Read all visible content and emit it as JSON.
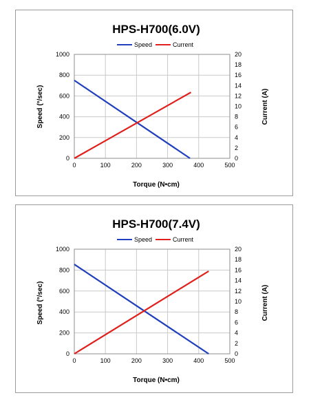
{
  "chart_data": [
    {
      "type": "line",
      "title": "HPS-H700(6.0V)",
      "xlabel": "Torque (N•cm)",
      "ylabel": "Speed (°/sec)",
      "y2label": "Current (A)",
      "xlim": [
        0,
        500
      ],
      "ylim": [
        0,
        1000
      ],
      "y2lim": [
        0,
        20
      ],
      "x_ticks": [
        "0",
        "100",
        "200",
        "300",
        "400",
        "500"
      ],
      "y_ticks": [
        "0",
        "200",
        "400",
        "600",
        "800",
        "1000"
      ],
      "y2_ticks": [
        "0",
        "2",
        "4",
        "6",
        "8",
        "10",
        "12",
        "14",
        "16",
        "18",
        "20"
      ],
      "grid": true,
      "legend": "top-center",
      "series": [
        {
          "name": "Speed",
          "axis": "left",
          "color": "#1f3fbf",
          "x": [
            0,
            372
          ],
          "y": [
            750,
            0
          ]
        },
        {
          "name": "Current",
          "axis": "right",
          "color": "#e0201c",
          "x": [
            0,
            375
          ],
          "y": [
            0,
            12.7
          ]
        }
      ]
    },
    {
      "type": "line",
      "title": "HPS-H700(7.4V)",
      "xlabel": "Torque (N•cm)",
      "ylabel": "Speed (°/sec)",
      "y2label": "Current (A)",
      "xlim": [
        0,
        500
      ],
      "ylim": [
        0,
        1000
      ],
      "y2lim": [
        0,
        20
      ],
      "x_ticks": [
        "0",
        "100",
        "200",
        "300",
        "400",
        "500"
      ],
      "y_ticks": [
        "0",
        "200",
        "400",
        "600",
        "800",
        "1000"
      ],
      "y2_ticks": [
        "0",
        "2",
        "4",
        "6",
        "8",
        "10",
        "12",
        "14",
        "16",
        "18",
        "20"
      ],
      "grid": true,
      "legend": "top-center",
      "series": [
        {
          "name": "Speed",
          "axis": "left",
          "color": "#1f3fbf",
          "x": [
            0,
            432
          ],
          "y": [
            855,
            0
          ]
        },
        {
          "name": "Current",
          "axis": "right",
          "color": "#e0201c",
          "x": [
            0,
            432
          ],
          "y": [
            0,
            15.8
          ]
        }
      ]
    }
  ]
}
